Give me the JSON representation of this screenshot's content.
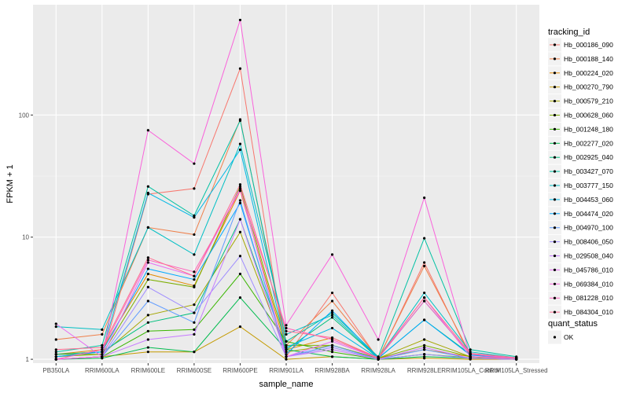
{
  "chart_data": {
    "type": "line",
    "xlabel": "sample_name",
    "ylabel": "FPKM + 1",
    "yscale": "log10",
    "ylim": [
      0.93,
      800
    ],
    "y_ticks": [
      1,
      10,
      100
    ],
    "y_tick_labels": [
      "1",
      "10",
      "100"
    ],
    "grid": true,
    "legend_position": "right",
    "categories": [
      "PB350LA",
      "RRIM600LA",
      "RRIM600LE",
      "RRIM600SE",
      "RRIM600PE",
      "RRIM901LA",
      "RRIM928BA",
      "RRIM928LA",
      "RRIM928LE",
      "RRIM105LA_Control",
      "RRIM105LA_Stressed"
    ],
    "legend_title": "tracking_id",
    "shape_legend_title": "quant_status",
    "shape_legend_items": [
      "OK"
    ],
    "series": [
      {
        "name": "Hb_000186_090",
        "color": "#F8766D",
        "values": [
          1.0,
          1.05,
          22.5,
          25,
          240,
          1.05,
          3.5,
          1.0,
          6.2,
          1.05,
          1.0
        ]
      },
      {
        "name": "Hb_000188_140",
        "color": "#EF7F49",
        "values": [
          1.45,
          1.6,
          12,
          10.5,
          92,
          1.3,
          3.0,
          1.02,
          5.8,
          1.1,
          1.02
        ]
      },
      {
        "name": "Hb_000224_020",
        "color": "#E38900",
        "values": [
          1.1,
          1.2,
          5.0,
          4.0,
          24,
          1.2,
          1.5,
          1.02,
          1.2,
          1.05,
          1.02
        ]
      },
      {
        "name": "Hb_000270_790",
        "color": "#C49A00",
        "values": [
          1.0,
          1.05,
          1.15,
          1.15,
          1.85,
          1.0,
          1.05,
          1.0,
          1.02,
          1.0,
          1.0
        ]
      },
      {
        "name": "Hb_000579_210",
        "color": "#A3A500",
        "values": [
          1.1,
          1.1,
          2.3,
          2.8,
          11,
          1.15,
          1.3,
          1.02,
          1.45,
          1.05,
          1.02
        ]
      },
      {
        "name": "Hb_000628_060",
        "color": "#7CAE00",
        "values": [
          1.05,
          1.1,
          4.5,
          3.9,
          26,
          1.3,
          1.3,
          1.02,
          1.3,
          1.05,
          1.02
        ]
      },
      {
        "name": "Hb_001248_180",
        "color": "#39B600",
        "values": [
          1.0,
          1.05,
          1.7,
          1.75,
          5.0,
          1.4,
          1.15,
          1.0,
          1.1,
          1.03,
          1.0
        ]
      },
      {
        "name": "Hb_002277_020",
        "color": "#00BB4E",
        "values": [
          1.0,
          1.02,
          1.25,
          1.15,
          3.2,
          1.2,
          1.05,
          1.0,
          1.05,
          1.02,
          1.0
        ]
      },
      {
        "name": "Hb_002925_040",
        "color": "#00BF7D",
        "values": [
          1.1,
          1.15,
          2.0,
          2.4,
          14,
          1.2,
          2.2,
          1.02,
          2.1,
          1.1,
          1.02
        ]
      },
      {
        "name": "Hb_003427_070",
        "color": "#00C1A3",
        "values": [
          1.15,
          1.3,
          26,
          15,
          90,
          1.4,
          2.4,
          1.05,
          9.8,
          1.2,
          1.05
        ]
      },
      {
        "name": "Hb_003777_150",
        "color": "#00BFC4",
        "values": [
          1.85,
          1.75,
          12,
          7.2,
          58,
          1.6,
          2.3,
          1.03,
          3.5,
          1.15,
          1.03
        ]
      },
      {
        "name": "Hb_004453_060",
        "color": "#00B8E5",
        "values": [
          1.05,
          1.15,
          23,
          14.5,
          52,
          1.25,
          1.8,
          1.02,
          3.0,
          1.1,
          1.02
        ]
      },
      {
        "name": "Hb_004474_020",
        "color": "#00A9FF",
        "values": [
          1.05,
          1.15,
          5.5,
          4.5,
          19,
          1.1,
          2.5,
          1.02,
          2.1,
          1.08,
          1.02
        ]
      },
      {
        "name": "Hb_004970_100",
        "color": "#619CFF",
        "values": [
          1.0,
          1.05,
          3.0,
          2.0,
          20,
          1.05,
          1.3,
          1.0,
          1.2,
          1.02,
          1.0
        ]
      },
      {
        "name": "Hb_008406_050",
        "color": "#9F8CFF",
        "values": [
          1.0,
          1.05,
          3.9,
          2.4,
          7.0,
          1.05,
          1.25,
          1.0,
          1.1,
          1.02,
          1.0
        ]
      },
      {
        "name": "Hb_029508_040",
        "color": "#C77CFF",
        "values": [
          1.0,
          1.05,
          1.45,
          1.6,
          14,
          1.05,
          1.2,
          1.0,
          1.25,
          1.02,
          1.0
        ]
      },
      {
        "name": "Hb_045786_010",
        "color": "#E76BF3",
        "values": [
          1.95,
          1.05,
          6.2,
          4.8,
          25,
          1.05,
          1.4,
          1.02,
          3.2,
          1.05,
          1.02
        ]
      },
      {
        "name": "Hb_069384_010",
        "color": "#FA62DB",
        "values": [
          1.0,
          1.05,
          75,
          40,
          600,
          1.9,
          7.2,
          1.45,
          21,
          1.05,
          1.03
        ]
      },
      {
        "name": "Hb_081228_010",
        "color": "#FF62BC",
        "values": [
          1.0,
          1.2,
          6.5,
          5.2,
          24,
          1.8,
          1.45,
          1.02,
          3.0,
          1.1,
          1.02
        ]
      },
      {
        "name": "Hb_084304_010",
        "color": "#FF6C91",
        "values": [
          1.2,
          1.25,
          6.8,
          4.8,
          27,
          1.7,
          1.5,
          1.03,
          3.2,
          1.12,
          1.03
        ]
      }
    ]
  }
}
